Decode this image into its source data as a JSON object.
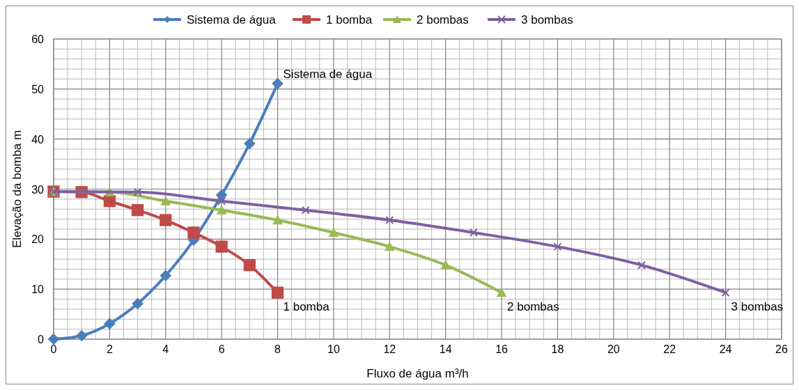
{
  "chart_data": {
    "type": "line",
    "xlabel": "Fluxo de água m³/h",
    "ylabel": "Elevação da bomba m",
    "xlim": [
      0,
      26
    ],
    "ylim": [
      0,
      60
    ],
    "xticks": [
      0,
      2,
      4,
      6,
      8,
      10,
      12,
      14,
      16,
      18,
      20,
      22,
      24,
      26
    ],
    "yticks": [
      0,
      10,
      20,
      30,
      40,
      50,
      60
    ],
    "grid": true,
    "legend": "top",
    "line_style": "solid",
    "series": [
      {
        "name": "Sistema de água",
        "color": "#4a7ebb",
        "marker": "diamond",
        "x": [
          0,
          1,
          2,
          3,
          4,
          5,
          6,
          7,
          8
        ],
        "values": [
          0,
          0.7,
          3.1,
          7.1,
          12.7,
          19.8,
          28.8,
          39.1,
          51.1
        ]
      },
      {
        "name": "1 bomba",
        "color": "#be4b48",
        "marker": "square",
        "x": [
          0,
          1,
          2,
          3,
          4,
          5,
          6,
          7,
          8
        ],
        "values": [
          29.5,
          29.4,
          27.6,
          25.8,
          23.8,
          21.3,
          18.5,
          14.8,
          9.3
        ]
      },
      {
        "name": "2 bombas",
        "color": "#98b954",
        "marker": "triangle",
        "x": [
          0,
          2,
          4,
          6,
          8,
          10,
          12,
          14,
          16
        ],
        "values": [
          29.5,
          29.4,
          27.6,
          25.8,
          23.8,
          21.3,
          18.5,
          14.8,
          9.3
        ]
      },
      {
        "name": "3 bombas",
        "color": "#7d60a0",
        "marker": "cross",
        "x": [
          0,
          3,
          6,
          9,
          12,
          15,
          18,
          21,
          24
        ],
        "values": [
          29.5,
          29.4,
          27.6,
          25.8,
          23.8,
          21.3,
          18.5,
          14.8,
          9.3
        ]
      }
    ],
    "annotations": [
      {
        "text": "Sistema de água",
        "x": 8,
        "y": 51.1
      },
      {
        "text": "1 bomba",
        "x": 8,
        "y": 9.3
      },
      {
        "text": "2 bombas",
        "x": 16,
        "y": 9.3
      },
      {
        "text": "3 bombas",
        "x": 24,
        "y": 9.3
      }
    ]
  }
}
